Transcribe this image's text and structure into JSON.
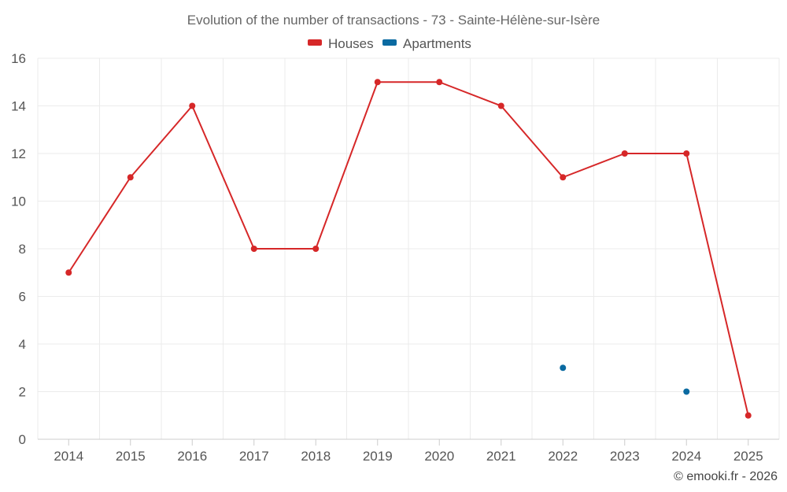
{
  "chart_data": {
    "type": "line",
    "title": "Evolution of the number of transactions - 73 - Sainte-Hélène-sur-Isère",
    "xlabel": "",
    "ylabel": "",
    "categories": [
      "2014",
      "2015",
      "2016",
      "2017",
      "2018",
      "2019",
      "2020",
      "2021",
      "2022",
      "2023",
      "2024",
      "2025"
    ],
    "ylim": [
      0,
      16
    ],
    "yticks": [
      "0",
      "2",
      "4",
      "6",
      "8",
      "10",
      "12",
      "14",
      "16"
    ],
    "grid": true,
    "legend_position": "top-center",
    "series": [
      {
        "name": "Houses",
        "color": "#d62728",
        "values": [
          7,
          11,
          14,
          8,
          8,
          15,
          15,
          14,
          11,
          12,
          12,
          1
        ]
      },
      {
        "name": "Apartments",
        "color": "#0a6aa1",
        "values": [
          null,
          null,
          null,
          null,
          null,
          null,
          null,
          null,
          3,
          null,
          2,
          null
        ]
      }
    ]
  },
  "credit": "© emooki.fr - 2026"
}
